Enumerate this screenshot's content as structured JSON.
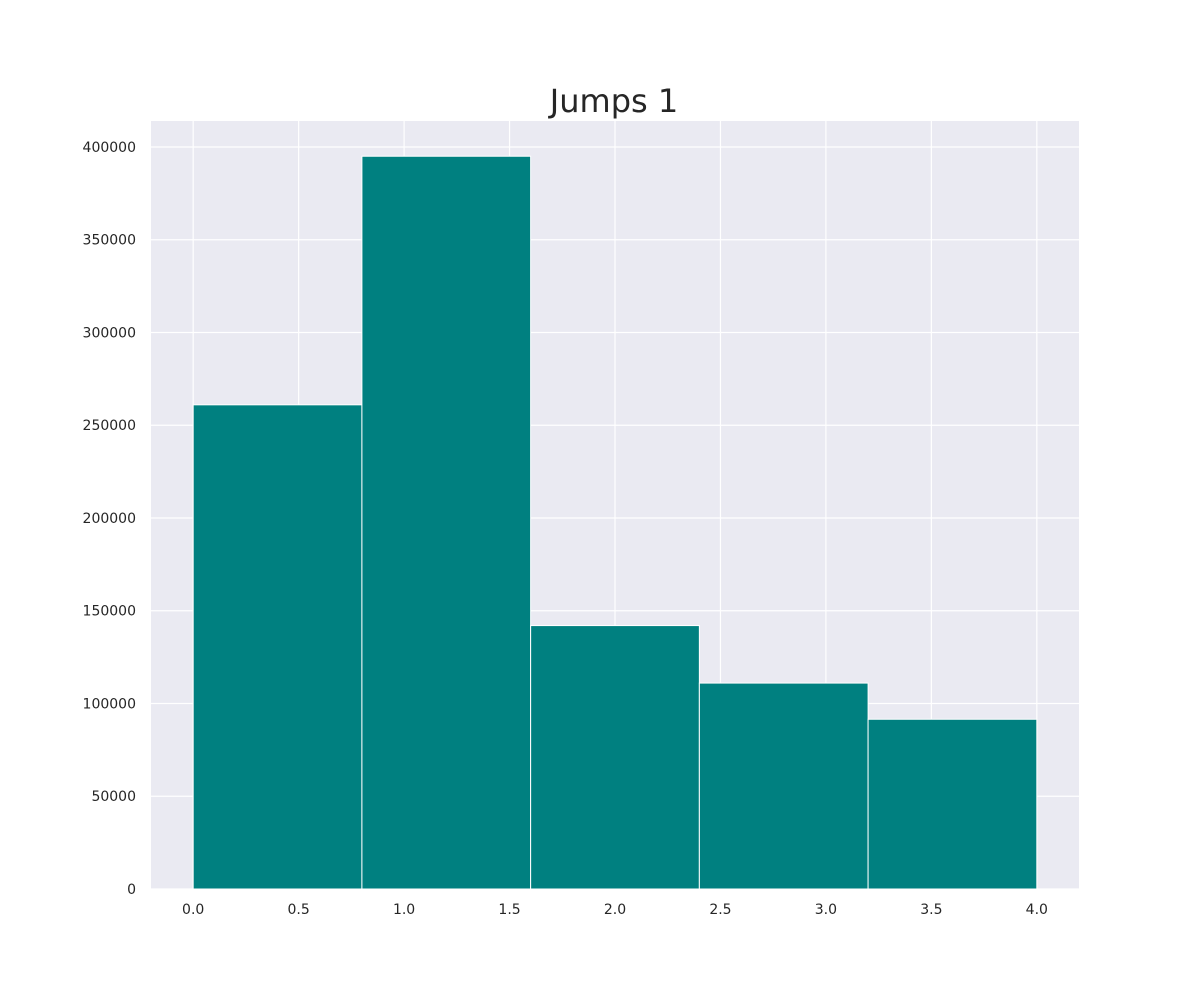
{
  "colors": {
    "plot_background": "#eaeaf2",
    "grid": "#ffffff",
    "bar_fill": "#008080",
    "bar_edge": "#ffffff",
    "text": "#262626"
  },
  "chart_data": {
    "type": "bar",
    "title": "Jumps 1",
    "xlabel": "",
    "ylabel": "",
    "bins": [
      {
        "start": 0.0,
        "end": 0.8,
        "value": 261000
      },
      {
        "start": 0.8,
        "end": 1.6,
        "value": 395000
      },
      {
        "start": 1.6,
        "end": 2.4,
        "value": 142000
      },
      {
        "start": 2.4,
        "end": 3.2,
        "value": 111000
      },
      {
        "start": 3.2,
        "end": 4.0,
        "value": 91500
      }
    ],
    "xlim": [
      -0.2,
      4.2
    ],
    "ylim": [
      0,
      414000
    ],
    "x_ticks": [
      0.0,
      0.5,
      1.0,
      1.5,
      2.0,
      2.5,
      3.0,
      3.5,
      4.0
    ],
    "x_tick_labels": [
      "0.0",
      "0.5",
      "1.0",
      "1.5",
      "2.0",
      "2.5",
      "3.0",
      "3.5",
      "4.0"
    ],
    "y_ticks": [
      0,
      50000,
      100000,
      150000,
      200000,
      250000,
      300000,
      350000,
      400000
    ],
    "y_tick_labels": [
      "0",
      "50000",
      "100000",
      "150000",
      "200000",
      "250000",
      "300000",
      "350000",
      "400000"
    ],
    "grid": true,
    "legend": "none"
  }
}
